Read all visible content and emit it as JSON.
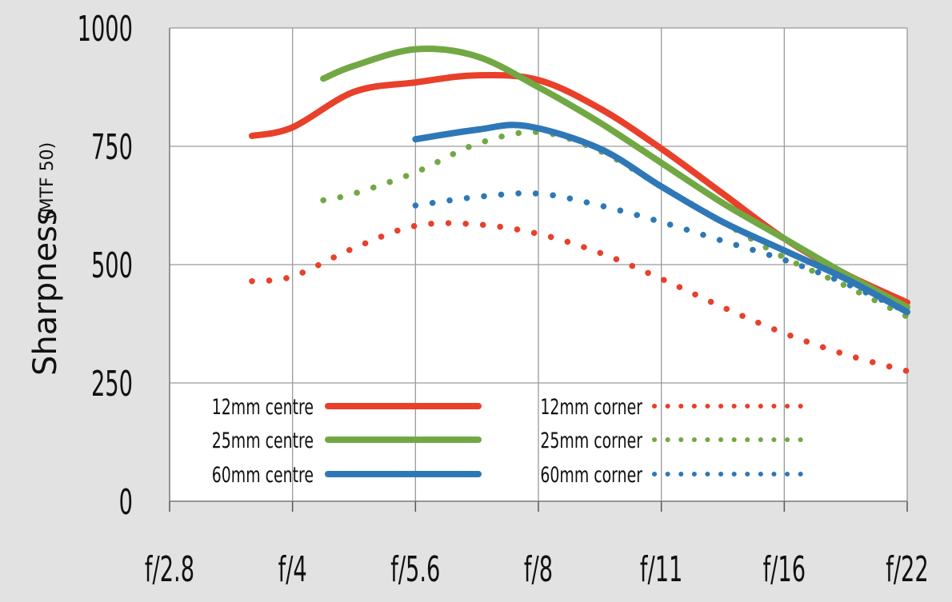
{
  "chart_data": {
    "type": "line",
    "ylabel": "Sharpness",
    "ylabel_unit": "(MTF 50)",
    "xlabel": "",
    "ylim": [
      0,
      1000
    ],
    "yticks": [
      "0",
      "250",
      "500",
      "750",
      "1000"
    ],
    "yticks_values": [
      0,
      250,
      500,
      750,
      1000
    ],
    "categories": [
      "f/2.8",
      "f/4",
      "f/5.6",
      "f/8",
      "f/11",
      "f/16",
      "f/22"
    ],
    "grid": true,
    "legend_placement": "bottom-left",
    "series": [
      {
        "name": "12mm centre",
        "style": "solid",
        "color": "#e8402a",
        "points": [
          [
            0.67,
            772
          ],
          [
            1.0,
            790
          ],
          [
            1.5,
            865
          ],
          [
            2.0,
            885
          ],
          [
            2.5,
            900
          ],
          [
            3.0,
            890
          ],
          [
            3.5,
            830
          ],
          [
            4.0,
            745
          ],
          [
            4.5,
            650
          ],
          [
            5.0,
            555
          ],
          [
            5.5,
            480
          ],
          [
            6.0,
            420
          ]
        ]
      },
      {
        "name": "25mm centre",
        "style": "solid",
        "color": "#72a844",
        "points": [
          [
            1.25,
            893
          ],
          [
            1.5,
            920
          ],
          [
            2.0,
            955
          ],
          [
            2.5,
            940
          ],
          [
            3.0,
            875
          ],
          [
            3.5,
            800
          ],
          [
            4.0,
            715
          ],
          [
            4.5,
            630
          ],
          [
            5.0,
            555
          ],
          [
            5.5,
            480
          ],
          [
            6.0,
            410
          ]
        ]
      },
      {
        "name": "60mm centre",
        "style": "solid",
        "color": "#2e78b8",
        "points": [
          [
            2.0,
            765
          ],
          [
            2.5,
            785
          ],
          [
            2.9,
            793
          ],
          [
            3.5,
            745
          ],
          [
            4.0,
            665
          ],
          [
            4.5,
            590
          ],
          [
            5.0,
            530
          ],
          [
            5.5,
            470
          ],
          [
            6.0,
            400
          ]
        ]
      },
      {
        "name": "12mm corner",
        "style": "dotted",
        "color": "#e8402a",
        "points": [
          [
            0.67,
            465
          ],
          [
            1.0,
            475
          ],
          [
            1.5,
            535
          ],
          [
            2.0,
            582
          ],
          [
            2.5,
            585
          ],
          [
            3.0,
            565
          ],
          [
            3.5,
            525
          ],
          [
            4.0,
            470
          ],
          [
            4.5,
            410
          ],
          [
            5.0,
            355
          ],
          [
            5.5,
            310
          ],
          [
            6.0,
            275
          ]
        ]
      },
      {
        "name": "25mm corner",
        "style": "dotted",
        "color": "#72a844",
        "points": [
          [
            1.25,
            636
          ],
          [
            1.5,
            650
          ],
          [
            2.0,
            695
          ],
          [
            2.5,
            755
          ],
          [
            3.0,
            780
          ],
          [
            3.5,
            740
          ],
          [
            4.0,
            665
          ],
          [
            4.5,
            590
          ],
          [
            5.0,
            515
          ],
          [
            5.5,
            455
          ],
          [
            6.0,
            390
          ]
        ]
      },
      {
        "name": "60mm corner",
        "style": "dotted",
        "color": "#2e78b8",
        "points": [
          [
            2.0,
            625
          ],
          [
            2.5,
            643
          ],
          [
            3.0,
            650
          ],
          [
            3.5,
            625
          ],
          [
            4.0,
            590
          ],
          [
            4.5,
            550
          ],
          [
            5.0,
            510
          ],
          [
            5.5,
            460
          ],
          [
            6.0,
            400
          ]
        ]
      }
    ]
  }
}
